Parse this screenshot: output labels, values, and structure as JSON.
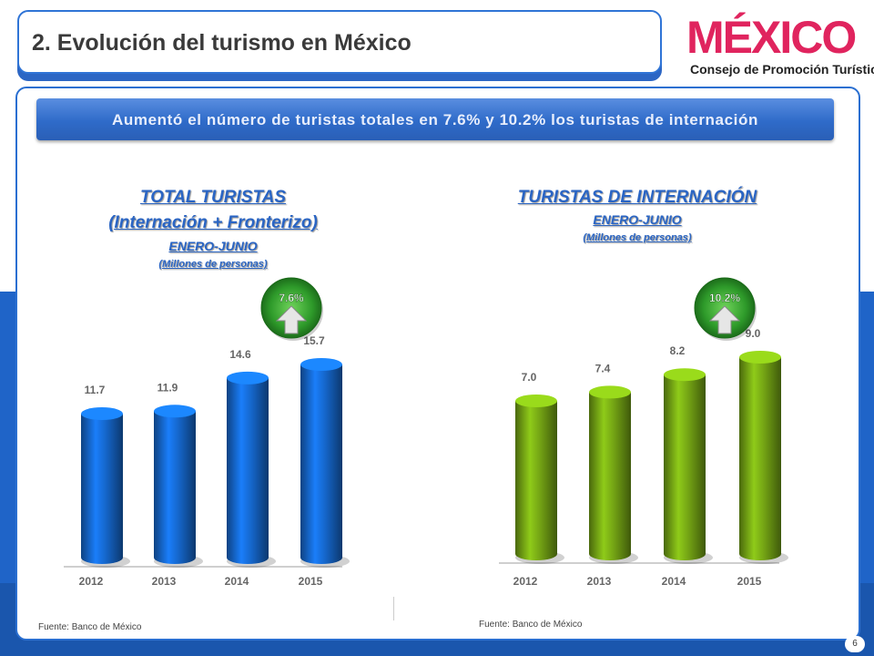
{
  "header": {
    "title": "2. Evolución del turismo en México",
    "logo_word": "MÉXICO",
    "logo_subtitle": "Consejo de Promoción Turística"
  },
  "banner": {
    "text": "Aumentó el número de turistas totales en  7.6%  y 10.2% los turistas de internación"
  },
  "left_chart_titles": {
    "line1": "TOTAL TURISTAS",
    "line2": "(Internación + Fronterizo)",
    "line3": "ENERO-JUNIO",
    "line4": "(Millones de personas)"
  },
  "right_chart_titles": {
    "line1": "TURISTAS DE INTERNACIÓN",
    "line2": "ENERO-JUNIO",
    "line3": "(Millones de personas)"
  },
  "colors": {
    "blue_bar": "#1565c8",
    "green_bar": "#72a214",
    "badge_green": "#2f9a2a",
    "title_blue": "#2a65c4"
  },
  "chart_data": [
    {
      "type": "bar",
      "title": "TOTAL TURISTAS (Internación + Fronterizo) ENERO-JUNIO (Millones de personas)",
      "categories": [
        "2012",
        "2013",
        "2014",
        "2015"
      ],
      "values": [
        11.7,
        11.9,
        14.6,
        15.7
      ],
      "value_labels": [
        "11.7",
        "11.9",
        "14.6",
        "15.7"
      ],
      "ylim": [
        0,
        17
      ],
      "growth_badge": "7.6%",
      "color": "#1565c8",
      "grid": false
    },
    {
      "type": "bar",
      "title": "TURISTAS DE INTERNACIÓN ENERO-JUNIO (Millones de personas)",
      "categories": [
        "2012",
        "2013",
        "2014",
        "2015"
      ],
      "values": [
        7.0,
        7.4,
        8.2,
        9.0
      ],
      "value_labels": [
        "7.0",
        "7.4",
        "8.2",
        "9.0"
      ],
      "ylim": [
        0,
        9.8
      ],
      "growth_badge": "10.2%",
      "color": "#72a214",
      "grid": false
    }
  ],
  "footer": {
    "source_left": "Fuente: Banco de México",
    "source_right": "Fuente: Banco de México",
    "page_number": "6"
  }
}
